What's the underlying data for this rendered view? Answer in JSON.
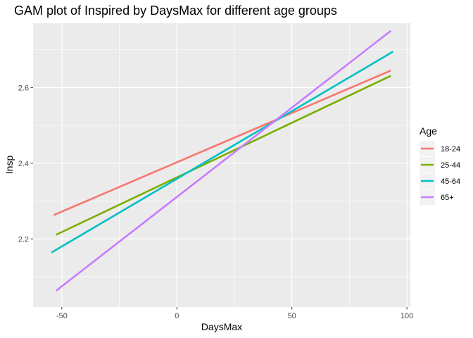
{
  "chart_data": {
    "type": "line",
    "title": "GAM plot of Inspired by DaysMax for different age groups",
    "xlabel": "DaysMax",
    "ylabel": "Insp",
    "xlim": [
      -62.5,
      101.5
    ],
    "ylim": [
      2.02,
      2.77
    ],
    "x_ticks": [
      -50,
      0,
      50,
      100
    ],
    "x_tick_labels": [
      "-50",
      "0",
      "50",
      "100"
    ],
    "y_ticks": [
      2.2,
      2.4,
      2.6
    ],
    "y_tick_labels": [
      "2.2",
      "2.4",
      "2.6"
    ],
    "grid": true,
    "legend": {
      "title": "Age",
      "position": "right"
    },
    "series": [
      {
        "name": "18-24",
        "color": "#F8766D",
        "x": [
          -53.5,
          93
        ],
        "y": [
          2.263,
          2.645
        ]
      },
      {
        "name": "25-44",
        "color": "#7CAE00",
        "x": [
          -52.5,
          93
        ],
        "y": [
          2.211,
          2.631
        ]
      },
      {
        "name": "45-64",
        "color": "#00BFC4",
        "x": [
          -54.5,
          94
        ],
        "y": [
          2.164,
          2.695
        ]
      },
      {
        "name": "65+",
        "color": "#C77CFF",
        "x": [
          -52.5,
          93
        ],
        "y": [
          2.063,
          2.75
        ]
      }
    ]
  }
}
